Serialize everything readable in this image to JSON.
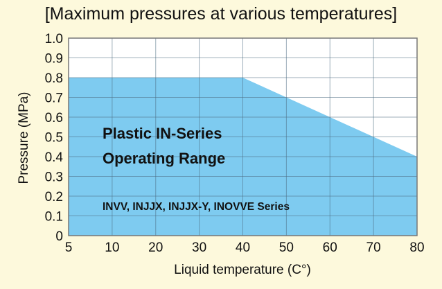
{
  "chart_data": {
    "type": "area",
    "title": "[Maximum pressures at various temperatures]",
    "xlabel": "Liquid temperature (C°)",
    "ylabel": "Pressure (MPa)",
    "x_ticks": [
      5,
      10,
      20,
      30,
      40,
      50,
      60,
      70,
      80
    ],
    "y_ticks": [
      "0",
      "0.1",
      "0.2",
      "0.3",
      "0.4",
      "0.5",
      "0.6",
      "0.7",
      "0.8",
      "0.9",
      "1.0"
    ],
    "ylim": [
      0,
      1.0
    ],
    "xlim": [
      5,
      80
    ],
    "grid": true,
    "series": [
      {
        "name": "Plastic IN-Series Operating Range",
        "x": [
          5,
          40,
          80
        ],
        "y": [
          0.8,
          0.8,
          0.4
        ],
        "color": "#7ecbf0"
      }
    ],
    "annotations": {
      "range_line1": "Plastic IN-Series",
      "range_line2": "Operating Range",
      "series_note": "INVV, INJJX, INJJX-Y, INOVVE Series"
    },
    "colors": {
      "background": "#fdf9dc",
      "plot": "#ffffff",
      "fill": "#7ecbf0"
    }
  }
}
